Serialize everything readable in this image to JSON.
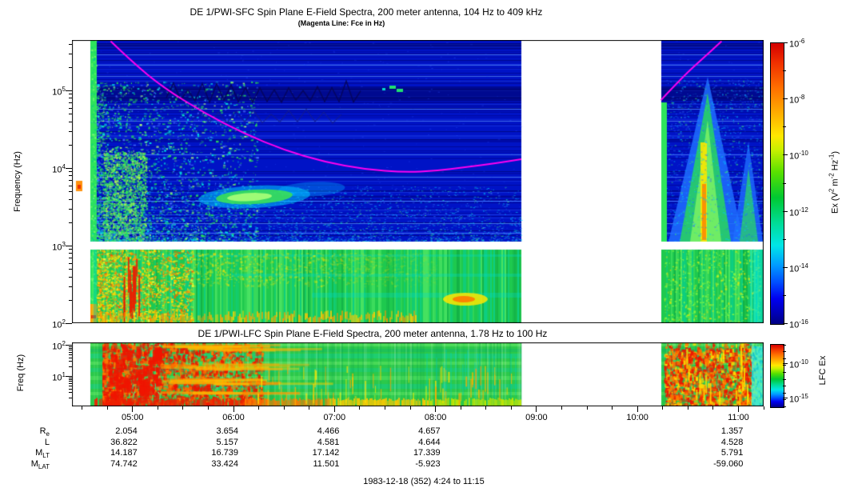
{
  "titles": {
    "sfc": "DE 1/PWI-SFC  Spin Plane E-Field Spectra, 200 meter antenna, 104 Hz to 409 kHz",
    "sfc_sub": "(Magenta Line: Fce in Hz)",
    "lfc": "DE 1/PWI-LFC  Spin Plane E-Field Spectra, 200 meter antenna, 1.78 Hz to 100 Hz",
    "caption": "1983-12-18 (352) 4:24 to 11:15"
  },
  "sfc_panel": {
    "ylabel": "Frequency (Hz)",
    "yticks": [
      {
        "mant": "10",
        "exp": "5"
      },
      {
        "mant": "10",
        "exp": "4"
      },
      {
        "mant": "10",
        "exp": "3"
      },
      {
        "mant": "10",
        "exp": "2"
      }
    ]
  },
  "sfc_colorbar": {
    "ticks": [
      {
        "mant": "10",
        "exp": "-6"
      },
      {
        "mant": "10",
        "exp": "-8"
      },
      {
        "mant": "10",
        "exp": "-10"
      },
      {
        "mant": "10",
        "exp": "-12"
      },
      {
        "mant": "10",
        "exp": "-14"
      },
      {
        "mant": "10",
        "exp": "-16"
      }
    ],
    "label_parts": [
      {
        "t": "Ex (V"
      },
      {
        "sup": "2"
      },
      {
        "t": " m"
      },
      {
        "sup": "-2"
      },
      {
        "t": " Hz"
      },
      {
        "sup": "-1"
      },
      {
        "t": ")"
      }
    ]
  },
  "lfc_panel": {
    "ylabel": "Freq (Hz)",
    "yticks": [
      {
        "mant": "10",
        "exp": "2"
      },
      {
        "mant": "10",
        "exp": "1"
      }
    ]
  },
  "lfc_colorbar": {
    "ticks": [
      {
        "mant": "10",
        "exp": "-10"
      },
      {
        "mant": "10",
        "exp": "-15"
      }
    ],
    "label": "LFC Ex"
  },
  "time_axis": {
    "labels": [
      "05:00",
      "06:00",
      "07:00",
      "08:00",
      "09:00",
      "10:00",
      "11:00"
    ],
    "hours": [
      5,
      6,
      7,
      8,
      9,
      10,
      11
    ],
    "start": "4:24",
    "end": "11:15"
  },
  "ephemeris": {
    "rows": [
      {
        "label": "R",
        "sub": "e",
        "values": [
          "2.054",
          "3.654",
          "4.466",
          "4.657",
          "",
          "",
          "1.357"
        ]
      },
      {
        "label": "L",
        "sub": "",
        "values": [
          "36.822",
          "5.157",
          "4.581",
          "4.644",
          "",
          "",
          "4.528"
        ]
      },
      {
        "label": "M",
        "sub": "LT",
        "values": [
          "14.187",
          "16.739",
          "17.142",
          "17.339",
          "",
          "",
          "5.791"
        ]
      },
      {
        "label": "M",
        "sub": "LAT",
        "values": [
          "74.742",
          "33.424",
          "11.501",
          "-5.923",
          "",
          "",
          "-59.060"
        ]
      }
    ]
  },
  "colors": {
    "fce_line": "#ff00f0",
    "sfc_background": "#0013c6",
    "sfc_low_band_green": "#1ec94e",
    "lfc_green": "#2bc94a",
    "frame": "#000000"
  },
  "chart_data": [
    {
      "type": "heatmap",
      "instrument": "DE 1/PWI-SFC",
      "title": "DE 1/PWI-SFC Spin Plane E-Field Spectra, 200 meter antenna, 104 Hz to 409 kHz",
      "ylabel": "Frequency (Hz)",
      "y_scale": "log",
      "y_range_hz": [
        100,
        450000
      ],
      "x_range_ut": [
        "4:24",
        "11:15"
      ],
      "x_ticks": [
        "05:00",
        "06:00",
        "07:00",
        "08:00",
        "09:00",
        "10:00",
        "11:00"
      ],
      "colorbar": {
        "label": "Ex (V^2 m^-2 Hz^-1)",
        "scale": "log",
        "range_min": 1e-16,
        "range_max": 1e-06
      },
      "data_coverage_ut": [
        [
          "04:35",
          "08:51"
        ],
        [
          "10:14",
          "11:15"
        ]
      ],
      "fce_line_ut_hz": [
        [
          [
            "04:47",
            430000
          ],
          [
            "05:00",
            230000
          ],
          [
            "05:18",
            110000
          ],
          [
            "05:42",
            52000
          ],
          [
            "06:06",
            28000
          ],
          [
            "06:30",
            17000
          ],
          [
            "06:54",
            12000
          ],
          [
            "07:18",
            9600
          ],
          [
            "07:42",
            8800
          ],
          [
            "08:00",
            9200
          ],
          [
            "08:18",
            10300
          ],
          [
            "08:36",
            11500
          ],
          [
            "08:51",
            13000
          ]
        ],
        [
          [
            "10:14",
            75000
          ],
          [
            "10:27",
            150000
          ],
          [
            "10:39",
            260000
          ],
          [
            "10:50",
            430000
          ]
        ]
      ],
      "features": [
        "Broadband turbulence 04:35-05:30 from below 1 kHz up to ~30 kHz",
        "Narrowband emission near 3-4 kHz between 06:05 and 06:55",
        "Quasi-continuous emission band below ~900 Hz across the whole pass (green/yellow lower band)",
        "Funnel-shaped auroral hiss 10:20-11:05 reaching ~100 kHz with yellow core near 10:45",
        "Magenta electron cyclotron frequency line falls from >400 kHz to ~9 kHz near 07:40 then rises, reappearing after the gap and climbing above 400 kHz by ~10:50",
        "White vertical band = data gap 08:51 to 10:14"
      ]
    },
    {
      "type": "heatmap",
      "instrument": "DE 1/PWI-LFC",
      "title": "DE 1/PWI-LFC Spin Plane E-Field Spectra, 200 meter antenna, 1.78 Hz to 100 Hz",
      "ylabel": "Freq (Hz)",
      "y_scale": "log",
      "y_range_hz": [
        1.78,
        100
      ],
      "x_range_ut": [
        "4:24",
        "11:15"
      ],
      "x_ticks": [
        "05:00",
        "06:00",
        "07:00",
        "08:00",
        "09:00",
        "10:00",
        "11:00"
      ],
      "colorbar": {
        "label": "LFC Ex",
        "scale": "log",
        "tick_values": [
          1e-10,
          1e-15
        ]
      },
      "data_coverage_ut": [
        [
          "04:35",
          "08:51"
        ],
        [
          "10:14",
          "11:15"
        ]
      ],
      "features": [
        "Intense ELF turbulence (red/orange) 04:40-05:35 across 2-100 Hz",
        "Persistent intense band near the lowest frequencies (2-4 Hz) until ~08:50",
        "Horizontal green/cyan banding at mid frequencies through the pass",
        "Intense broadband burst (red) 10:15-10:55",
        "Weaker cyan levels 10:55-11:15"
      ]
    }
  ]
}
